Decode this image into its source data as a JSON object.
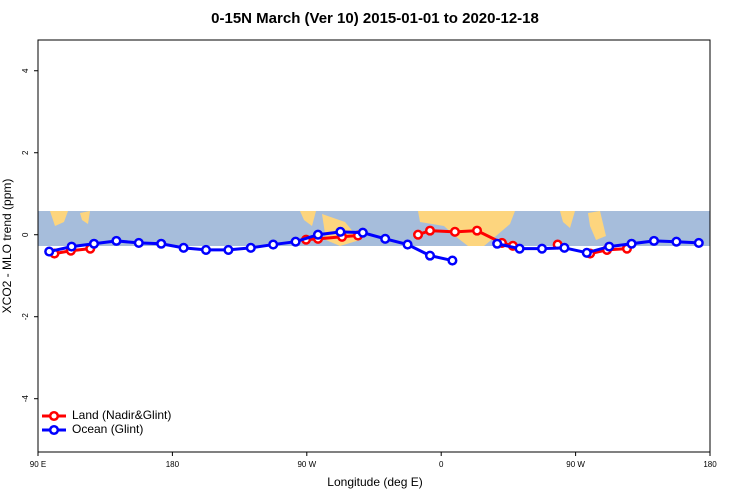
{
  "chart_data": {
    "type": "line",
    "title": "0-15N March (Ver 10)   2015-01-01 to 2020-12-18",
    "x_label": "Longitude (deg E)",
    "y_label": "XCO2 - MLO trend (ppm)",
    "xlim": [
      90,
      540
    ],
    "xticks": [
      {
        "value": 90,
        "label": "90 E"
      },
      {
        "value": 180,
        "label": "180"
      },
      {
        "value": 270,
        "label": "90 W"
      },
      {
        "value": 360,
        "label": "0"
      },
      {
        "value": 450,
        "label": "90 W"
      },
      {
        "value": 540,
        "label": "180"
      }
    ],
    "ylim": [
      -5.3,
      4.75
    ],
    "yticks": [
      -4,
      -2,
      0,
      2,
      4
    ],
    "legend": "bottomleft",
    "series": [
      {
        "name": "Land (Nadir&Glint)",
        "color": "#ff0000",
        "x": [
          101,
          112,
          125,
          null,
          269.5,
          277.5,
          293.6,
          304.3,
          null,
          344.5,
          352.5,
          369.2,
          384,
          400.7,
          408,
          null,
          438,
          null,
          459.7,
          471,
          484.4
        ],
        "values": [
          -0.46,
          -0.39,
          -0.34,
          null,
          -0.12,
          -0.1,
          -0.05,
          -0.02,
          null,
          0,
          0.1,
          0.07,
          0.1,
          -0.2,
          -0.27,
          null,
          -0.24,
          null,
          -0.46,
          -0.37,
          -0.34
        ]
      },
      {
        "name": "Ocean (Glint)",
        "color": "#0000ff",
        "x": [
          97.5,
          112.5,
          127.5,
          142.5,
          157.5,
          172.5,
          187.5,
          202.5,
          217.5,
          232.5,
          247.5,
          262.5,
          277.5,
          292.5,
          307.5,
          322.5,
          337.5,
          352.5,
          367.5,
          382.5,
          397.5,
          412.5,
          427.5,
          442.5,
          457.5,
          472.5,
          487.5,
          502.5,
          517.5,
          532.5
        ],
        "values": [
          -0.41,
          -0.29,
          -0.22,
          -0.15,
          -0.2,
          -0.22,
          -0.32,
          -0.37,
          -0.37,
          -0.32,
          -0.24,
          -0.17,
          0,
          0.07,
          0.05,
          -0.1,
          -0.24,
          -0.51,
          -0.63,
          null,
          -0.22,
          -0.34,
          -0.34,
          -0.32,
          -0.44,
          -0.29,
          -0.22,
          -0.15,
          -0.17,
          -0.2
        ]
      }
    ]
  }
}
